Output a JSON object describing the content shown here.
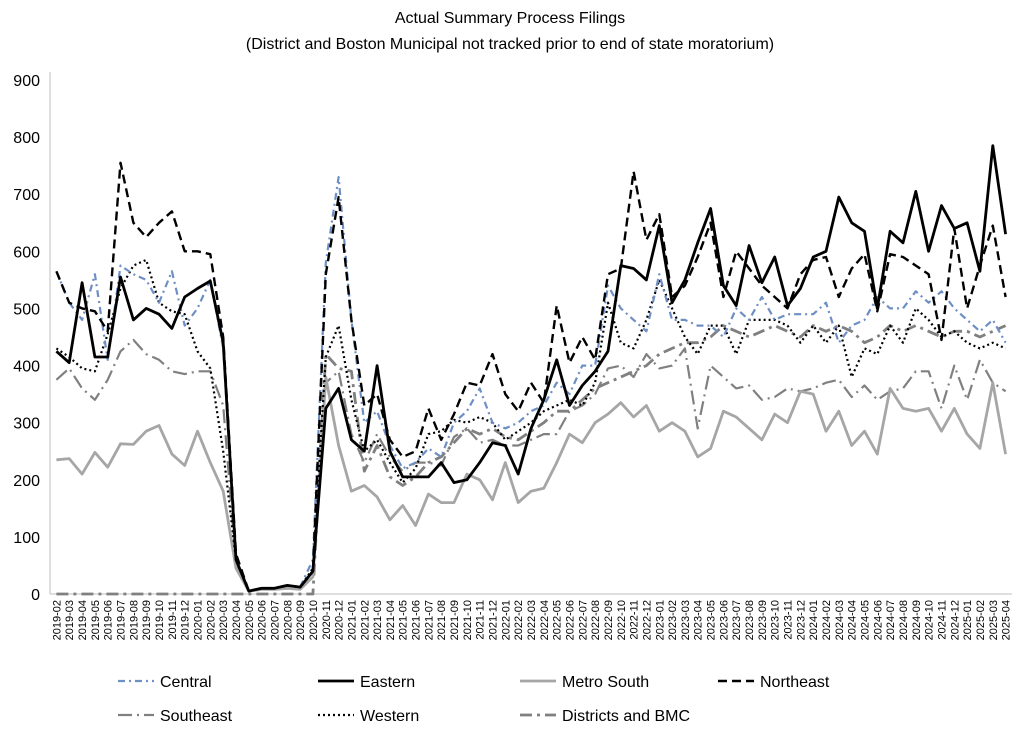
{
  "chart_data": {
    "type": "line",
    "title": "Actual Summary Process Filings",
    "subtitle": "(District and Boston Municipal not tracked prior to end of state moratorium)",
    "xlabel": "",
    "ylabel": "",
    "ylim": [
      0,
      900
    ],
    "yticks": [
      0,
      100,
      200,
      300,
      400,
      500,
      600,
      700,
      800,
      900
    ],
    "grid": false,
    "legend_position": "bottom",
    "categories": [
      "2019-02",
      "2019-03",
      "2019-04",
      "2019-05",
      "2019-06",
      "2019-07",
      "2019-08",
      "2019-09",
      "2019-10",
      "2019-11",
      "2019-12",
      "2020-01",
      "2020-02",
      "2020-03",
      "2020-04",
      "2020-05",
      "2020-06",
      "2020-07",
      "2020-08",
      "2020-09",
      "2020-10",
      "2020-11",
      "2020-12",
      "2021-01",
      "2021-02",
      "2021-03",
      "2021-04",
      "2021-05",
      "2021-06",
      "2021-07",
      "2021-08",
      "2021-09",
      "2021-10",
      "2021-11",
      "2021-12",
      "2022-01",
      "2022-02",
      "2022-03",
      "2022-04",
      "2022-05",
      "2022-06",
      "2022-07",
      "2022-08",
      "2022-09",
      "2022-10",
      "2022-11",
      "2022-12",
      "2023-01",
      "2023-02",
      "2023-03",
      "2023-04",
      "2023-05",
      "2023-06",
      "2023-07",
      "2023-08",
      "2023-09",
      "2023-10",
      "2023-11",
      "2023-12",
      "2024-01",
      "2024-02",
      "2024-03",
      "2024-04",
      "2024-05",
      "2024-06",
      "2024-07",
      "2024-08",
      "2024-09",
      "2024-10",
      "2024-11",
      "2024-12",
      "2025-01",
      "2025-02",
      "2025-03",
      "2025-04"
    ],
    "series": [
      {
        "name": "Central",
        "style": "central",
        "color": "#6e8fc4",
        "values": [
          565,
          510,
          480,
          560,
          410,
          575,
          560,
          550,
          510,
          565,
          470,
          500,
          550,
          430,
          60,
          5,
          10,
          10,
          15,
          12,
          60,
          580,
          730,
          480,
          300,
          320,
          260,
          220,
          230,
          255,
          240,
          300,
          320,
          360,
          300,
          290,
          300,
          320,
          330,
          370,
          350,
          400,
          400,
          540,
          500,
          480,
          460,
          560,
          480,
          480,
          470,
          470,
          450,
          500,
          480,
          520,
          480,
          490,
          490,
          490,
          510,
          440,
          470,
          480,
          520,
          500,
          500,
          530,
          510,
          530,
          500,
          480,
          460,
          480,
          440
        ]
      },
      {
        "name": "Eastern",
        "style": "eastern",
        "color": "#000000",
        "values": [
          425,
          405,
          545,
          415,
          415,
          555,
          480,
          500,
          490,
          465,
          520,
          535,
          548,
          440,
          60,
          5,
          10,
          10,
          15,
          12,
          40,
          325,
          360,
          270,
          250,
          400,
          250,
          205,
          205,
          205,
          230,
          195,
          200,
          230,
          265,
          260,
          210,
          290,
          340,
          410,
          330,
          365,
          390,
          425,
          575,
          570,
          550,
          645,
          510,
          550,
          615,
          675,
          540,
          505,
          610,
          545,
          590,
          505,
          535,
          590,
          600,
          695,
          650,
          635,
          500,
          635,
          615,
          705,
          600,
          680,
          640,
          650,
          565,
          785,
          630
        ]
      },
      {
        "name": "Metro South",
        "style": "metro",
        "color": "#a6a6a6",
        "values": [
          235,
          237,
          210,
          248,
          222,
          263,
          262,
          285,
          295,
          245,
          225,
          285,
          230,
          180,
          45,
          5,
          8,
          8,
          10,
          8,
          30,
          380,
          260,
          180,
          190,
          170,
          130,
          155,
          120,
          175,
          160,
          160,
          210,
          200,
          165,
          230,
          160,
          180,
          185,
          230,
          280,
          265,
          300,
          315,
          335,
          310,
          330,
          285,
          300,
          285,
          240,
          255,
          320,
          310,
          290,
          270,
          315,
          300,
          355,
          350,
          285,
          320,
          260,
          285,
          245,
          360,
          325,
          320,
          325,
          285,
          325,
          280,
          255,
          370,
          245
        ]
      },
      {
        "name": "Northeast",
        "style": "northeast",
        "color": "#000000",
        "values": [
          565,
          510,
          500,
          495,
          460,
          755,
          650,
          625,
          650,
          670,
          600,
          600,
          595,
          450,
          70,
          5,
          10,
          10,
          15,
          12,
          40,
          560,
          695,
          480,
          330,
          350,
          270,
          240,
          250,
          325,
          270,
          315,
          370,
          365,
          420,
          350,
          320,
          370,
          335,
          505,
          405,
          450,
          410,
          560,
          570,
          740,
          620,
          665,
          520,
          540,
          590,
          650,
          520,
          600,
          570,
          540,
          520,
          500,
          560,
          585,
          590,
          520,
          570,
          595,
          495,
          595,
          590,
          575,
          560,
          445,
          640,
          500,
          575,
          645,
          520
        ]
      },
      {
        "name": "Southeast",
        "style": "southeast",
        "color": "#808080",
        "values": [
          375,
          395,
          360,
          340,
          375,
          425,
          445,
          420,
          410,
          390,
          385,
          390,
          390,
          330,
          50,
          5,
          8,
          8,
          10,
          8,
          30,
          370,
          390,
          280,
          230,
          280,
          240,
          215,
          230,
          230,
          225,
          275,
          290,
          265,
          270,
          260,
          260,
          270,
          280,
          280,
          320,
          330,
          350,
          395,
          400,
          380,
          420,
          395,
          400,
          430,
          290,
          400,
          380,
          360,
          365,
          340,
          345,
          360,
          355,
          360,
          370,
          375,
          345,
          365,
          340,
          355,
          360,
          390,
          390,
          325,
          400,
          340,
          410,
          370,
          355
        ]
      },
      {
        "name": "Western",
        "style": "western",
        "color": "#000000",
        "values": [
          430,
          415,
          395,
          390,
          455,
          535,
          575,
          585,
          510,
          495,
          490,
          425,
          395,
          250,
          60,
          5,
          10,
          10,
          15,
          12,
          45,
          415,
          470,
          340,
          250,
          270,
          230,
          195,
          220,
          280,
          285,
          305,
          300,
          310,
          300,
          270,
          285,
          300,
          320,
          330,
          340,
          330,
          370,
          510,
          440,
          430,
          480,
          550,
          500,
          450,
          420,
          470,
          470,
          420,
          480,
          480,
          480,
          470,
          440,
          470,
          440,
          470,
          380,
          430,
          420,
          470,
          440,
          500,
          480,
          450,
          460,
          440,
          430,
          440,
          430
        ]
      },
      {
        "name": "Districts and BMC",
        "style": "dbmc",
        "color": "#808080",
        "values": [
          0,
          0,
          0,
          0,
          0,
          0,
          0,
          0,
          0,
          0,
          0,
          0,
          0,
          0,
          0,
          0,
          0,
          0,
          0,
          0,
          0,
          420,
          395,
          390,
          215,
          260,
          205,
          190,
          205,
          230,
          240,
          265,
          290,
          280,
          290,
          275,
          270,
          285,
          300,
          320,
          320,
          340,
          360,
          370,
          380,
          390,
          400,
          420,
          430,
          440,
          440,
          450,
          470,
          460,
          450,
          460,
          470,
          460,
          450,
          470,
          460,
          470,
          460,
          440,
          450,
          470,
          460,
          470,
          460,
          450,
          460,
          460,
          450,
          460,
          470
        ]
      }
    ]
  }
}
